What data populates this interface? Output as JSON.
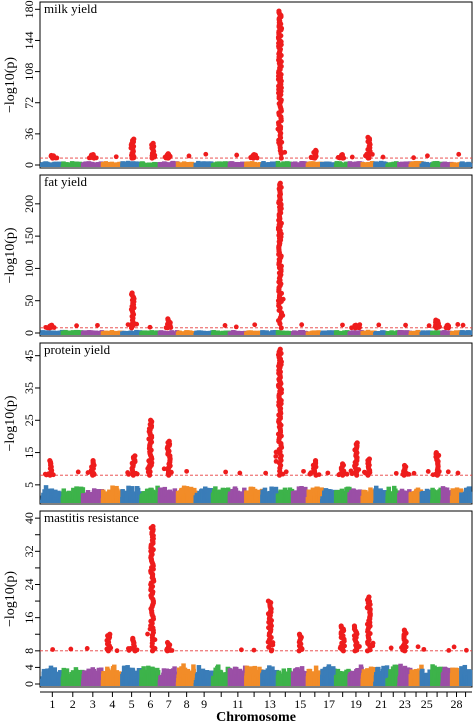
{
  "chart_data": {
    "type": "scatter",
    "xlabel": "Chromosome",
    "ylabel": "−log10(p)",
    "chromosome_tick_labels": [
      "1",
      "2",
      "3",
      "4",
      "5",
      "6",
      "7",
      "8",
      "9",
      "11",
      "13",
      "15",
      "17",
      "19",
      "21",
      "23",
      "25",
      "28"
    ],
    "palette": [
      "#3a7db8",
      "#3db34a",
      "#9b4fa6",
      "#f28c28"
    ],
    "significant_color": "#ee1c1c",
    "threshold_color": "#e83b3b",
    "panels": [
      {
        "title": "milk yield",
        "ylim": [
          0,
          185
        ],
        "yticks": [
          0,
          36,
          72,
          108,
          144,
          180
        ],
        "baseline": 5,
        "threshold": 8,
        "peaks": [
          {
            "chr": 5,
            "pos": 0.55,
            "max": 30
          },
          {
            "chr": 6,
            "pos": 0.6,
            "max": 25
          },
          {
            "chr": 7,
            "pos": 0.5,
            "max": 13
          },
          {
            "chr": 14,
            "pos": 0.15,
            "max": 178
          },
          {
            "chr": 16,
            "pos": 0.5,
            "max": 17
          },
          {
            "chr": 20,
            "pos": 0.5,
            "max": 32
          },
          {
            "chr": 1,
            "pos": 0.5,
            "max": 11
          },
          {
            "chr": 3,
            "pos": 0.5,
            "max": 12
          },
          {
            "chr": 12,
            "pos": 0.5,
            "max": 12
          },
          {
            "chr": 18,
            "pos": 0.5,
            "max": 12
          }
        ]
      },
      {
        "title": "fat yield",
        "ylim": [
          0,
          240
        ],
        "yticks": [
          0,
          50,
          100,
          150,
          200
        ],
        "baseline": 5,
        "threshold": 8,
        "peaks": [
          {
            "chr": 5,
            "pos": 0.55,
            "max": 62
          },
          {
            "chr": 7,
            "pos": 0.5,
            "max": 22
          },
          {
            "chr": 14,
            "pos": 0.15,
            "max": 232
          },
          {
            "chr": 1,
            "pos": 0.4,
            "max": 12
          },
          {
            "chr": 26,
            "pos": 0.5,
            "max": 20
          },
          {
            "chr": 19,
            "pos": 0.5,
            "max": 12
          },
          {
            "chr": 27,
            "pos": 0.5,
            "max": 12
          }
        ]
      },
      {
        "title": "protein yield",
        "ylim": [
          0,
          48
        ],
        "yticks": [
          5,
          15,
          25,
          35,
          45
        ],
        "baseline": 5,
        "threshold": 8,
        "peaks": [
          {
            "chr": 1,
            "pos": 0.4,
            "max": 12.5
          },
          {
            "chr": 3,
            "pos": 0.5,
            "max": 12.5
          },
          {
            "chr": 5,
            "pos": 0.6,
            "max": 14
          },
          {
            "chr": 6,
            "pos": 0.5,
            "max": 25
          },
          {
            "chr": 7,
            "pos": 0.5,
            "max": 18.5
          },
          {
            "chr": 14,
            "pos": 0.15,
            "max": 47
          },
          {
            "chr": 16,
            "pos": 0.5,
            "max": 12.5
          },
          {
            "chr": 18,
            "pos": 0.5,
            "max": 11.5
          },
          {
            "chr": 19,
            "pos": 0.5,
            "max": 18
          },
          {
            "chr": 20,
            "pos": 0.5,
            "max": 13
          },
          {
            "chr": 23,
            "pos": 0.5,
            "max": 11
          },
          {
            "chr": 26,
            "pos": 0.5,
            "max": 15
          }
        ]
      },
      {
        "title": "mastitis resistance",
        "ylim": [
          0,
          41
        ],
        "yticks": [
          0,
          4,
          8,
          12,
          16,
          20,
          24,
          28,
          32,
          36,
          40
        ],
        "ytick_labels": [
          0,
          4,
          8,
          16,
          24,
          32,
          40
        ],
        "baseline": 5,
        "threshold": 8,
        "peaks": [
          {
            "chr": 4,
            "pos": 0.3,
            "max": 12
          },
          {
            "chr": 5,
            "pos": 0.6,
            "max": 11
          },
          {
            "chr": 6,
            "pos": 0.6,
            "max": 38
          },
          {
            "chr": 7,
            "pos": 0.5,
            "max": 10
          },
          {
            "chr": 13,
            "pos": 0.5,
            "max": 20
          },
          {
            "chr": 15,
            "pos": 0.5,
            "max": 12
          },
          {
            "chr": 18,
            "pos": 0.5,
            "max": 14
          },
          {
            "chr": 19,
            "pos": 0.5,
            "max": 14
          },
          {
            "chr": 20,
            "pos": 0.5,
            "max": 21
          },
          {
            "chr": 23,
            "pos": 0.5,
            "max": 13
          }
        ]
      }
    ]
  }
}
